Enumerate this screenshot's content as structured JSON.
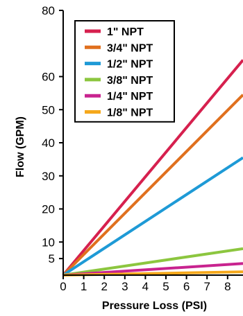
{
  "chart_data": {
    "type": "line",
    "title": "",
    "xlabel": "Pressure Loss (PSI)",
    "ylabel": "Flow (GPM)",
    "xlim": [
      0,
      8.75
    ],
    "ylim": [
      0,
      80
    ],
    "x_ticks": [
      "0",
      "1",
      "2",
      "3",
      "4",
      "5",
      "6",
      "7",
      "8"
    ],
    "y_ticks": [
      {
        "value": 5,
        "label": "5"
      },
      {
        "value": 10,
        "label": "10"
      },
      {
        "value": 20,
        "label": "20"
      },
      {
        "value": 30,
        "label": "30"
      },
      {
        "value": 40,
        "label": "40"
      },
      {
        "value": 50,
        "label": "50"
      },
      {
        "value": 60,
        "label": "60"
      },
      {
        "value": 80,
        "label": "80"
      }
    ],
    "grid": false,
    "legend_position": "top-left",
    "series": [
      {
        "name": "1\" NPT",
        "color": "#d6204e",
        "x": [
          0,
          8.75
        ],
        "y": [
          0,
          65
        ]
      },
      {
        "name": "3/4\" NPT",
        "color": "#e0701e",
        "x": [
          0,
          8.75
        ],
        "y": [
          0,
          54.5
        ]
      },
      {
        "name": "1/2\" NPT",
        "color": "#1e9ad6",
        "x": [
          0,
          8.75
        ],
        "y": [
          0,
          35.5
        ]
      },
      {
        "name": "3/8\" NPT",
        "color": "#8cc63f",
        "x": [
          0,
          8.75
        ],
        "y": [
          0,
          8
        ]
      },
      {
        "name": "1/4\" NPT",
        "color": "#c8238f",
        "x": [
          0,
          8.75
        ],
        "y": [
          0,
          3.5
        ]
      },
      {
        "name": "1/8\" NPT",
        "color": "#f5a81c",
        "x": [
          0,
          8.75
        ],
        "y": [
          0,
          1
        ]
      }
    ]
  }
}
